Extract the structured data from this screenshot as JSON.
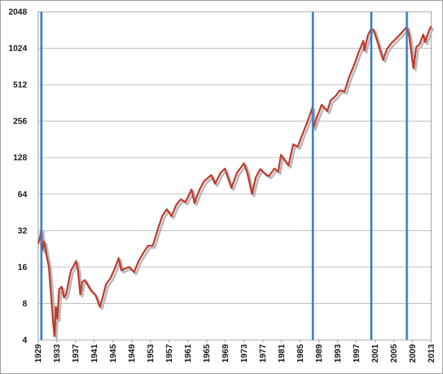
{
  "chart_data": {
    "type": "line",
    "title": "",
    "xlabel": "",
    "ylabel": "",
    "y_scale": "log2",
    "xlim": [
      1929,
      2013
    ],
    "ylim": [
      4,
      2048
    ],
    "grid": "horizontal",
    "legend": "none",
    "y_ticks": [
      "4",
      "8",
      "16",
      "32",
      "64",
      "128",
      "256",
      "512",
      "1024",
      "2048"
    ],
    "x_ticks": [
      "1929",
      "1933",
      "1937",
      "1941",
      "1945",
      "1949",
      "1953",
      "1957",
      "1961",
      "1965",
      "1969",
      "1973",
      "1977",
      "1981",
      "1985",
      "1989",
      "1993",
      "1997",
      "2001",
      "2005",
      "2009",
      "2013"
    ],
    "vertical_markers": [
      1929.7,
      1987.7,
      2000.2,
      2007.8
    ],
    "colors": {
      "line": "#c0392b",
      "shadow": "#b8b8b8",
      "marker": "#3d7cc9",
      "grid": "#a6a6a6"
    },
    "series": [
      {
        "points": [
          [
            1929.0,
            25
          ],
          [
            1929.3,
            27
          ],
          [
            1929.7,
            33
          ],
          [
            1929.9,
            22
          ],
          [
            1930.3,
            26
          ],
          [
            1930.8,
            20
          ],
          [
            1931.3,
            16
          ],
          [
            1931.8,
            9
          ],
          [
            1932.2,
            5.5
          ],
          [
            1932.5,
            4.3
          ],
          [
            1932.8,
            7.5
          ],
          [
            1933.1,
            6
          ],
          [
            1933.5,
            10.5
          ],
          [
            1934.0,
            11
          ],
          [
            1934.5,
            9
          ],
          [
            1935.0,
            9.5
          ],
          [
            1935.5,
            12
          ],
          [
            1936.0,
            15
          ],
          [
            1936.5,
            16
          ],
          [
            1937.1,
            18
          ],
          [
            1937.5,
            15
          ],
          [
            1938.0,
            9.5
          ],
          [
            1938.4,
            12
          ],
          [
            1939.0,
            12.5
          ],
          [
            1939.8,
            11
          ],
          [
            1940.5,
            10
          ],
          [
            1941.2,
            9.5
          ],
          [
            1942.2,
            7.5
          ],
          [
            1942.8,
            9
          ],
          [
            1943.5,
            11.5
          ],
          [
            1944.5,
            13
          ],
          [
            1945.5,
            16
          ],
          [
            1946.2,
            19
          ],
          [
            1946.8,
            15
          ],
          [
            1947.5,
            15.5
          ],
          [
            1948.5,
            16
          ],
          [
            1949.5,
            14.5
          ],
          [
            1950.5,
            18
          ],
          [
            1951.5,
            21
          ],
          [
            1952.5,
            24
          ],
          [
            1953.5,
            24
          ],
          [
            1954.5,
            32
          ],
          [
            1955.5,
            42
          ],
          [
            1956.5,
            48
          ],
          [
            1957.5,
            42
          ],
          [
            1958.5,
            52
          ],
          [
            1959.5,
            58
          ],
          [
            1960.5,
            55
          ],
          [
            1961.8,
            70
          ],
          [
            1962.4,
            54
          ],
          [
            1963.5,
            70
          ],
          [
            1964.5,
            82
          ],
          [
            1966.0,
            92
          ],
          [
            1966.8,
            78
          ],
          [
            1968.0,
            96
          ],
          [
            1968.9,
            104
          ],
          [
            1970.3,
            72
          ],
          [
            1971.5,
            96
          ],
          [
            1973.0,
            115
          ],
          [
            1973.7,
            96
          ],
          [
            1974.7,
            64
          ],
          [
            1975.5,
            88
          ],
          [
            1976.5,
            103
          ],
          [
            1977.5,
            94
          ],
          [
            1978.3,
            90
          ],
          [
            1979.5,
            104
          ],
          [
            1980.3,
            98
          ],
          [
            1980.9,
            135
          ],
          [
            1982.5,
            110
          ],
          [
            1983.5,
            165
          ],
          [
            1984.5,
            158
          ],
          [
            1985.5,
            200
          ],
          [
            1986.5,
            250
          ],
          [
            1987.6,
            330
          ],
          [
            1987.8,
            225
          ],
          [
            1988.5,
            270
          ],
          [
            1989.6,
            350
          ],
          [
            1990.8,
            310
          ],
          [
            1991.5,
            380
          ],
          [
            1992.5,
            410
          ],
          [
            1993.5,
            460
          ],
          [
            1994.5,
            450
          ],
          [
            1995.5,
            600
          ],
          [
            1996.5,
            740
          ],
          [
            1997.5,
            950
          ],
          [
            1998.5,
            1180
          ],
          [
            1998.7,
            980
          ],
          [
            1999.5,
            1320
          ],
          [
            2000.2,
            1480
          ],
          [
            2000.7,
            1450
          ],
          [
            2001.7,
            1100
          ],
          [
            2002.7,
            820
          ],
          [
            2003.5,
            1000
          ],
          [
            2004.5,
            1130
          ],
          [
            2005.5,
            1230
          ],
          [
            2006.5,
            1350
          ],
          [
            2007.8,
            1540
          ],
          [
            2008.3,
            1300
          ],
          [
            2008.9,
            850
          ],
          [
            2009.2,
            700
          ],
          [
            2009.8,
            1050
          ],
          [
            2010.5,
            1100
          ],
          [
            2011.3,
            1330
          ],
          [
            2011.7,
            1150
          ],
          [
            2012.5,
            1420
          ],
          [
            2013.0,
            1560
          ]
        ]
      }
    ]
  }
}
